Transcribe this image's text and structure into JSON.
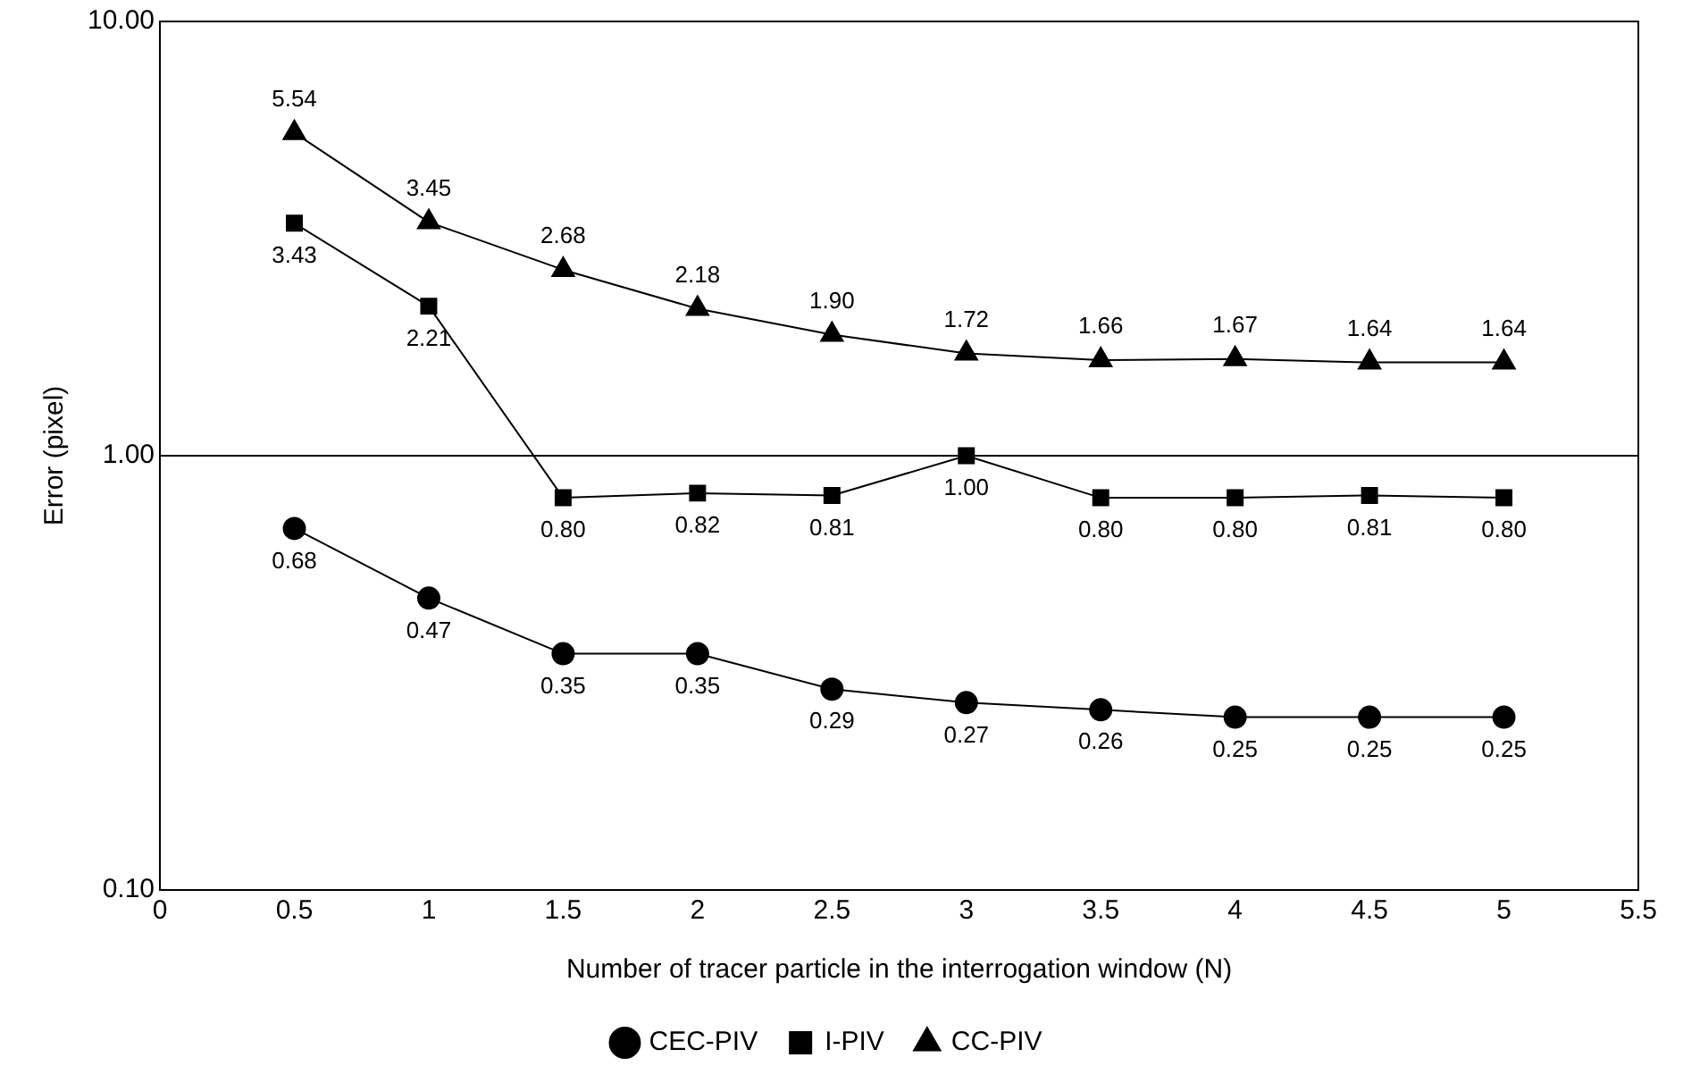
{
  "chart_data": {
    "type": "line",
    "xlabel": "Number of tracer particle in the interrogation window (N)",
    "ylabel": "Error (pixel)",
    "x": [
      0.5,
      1,
      1.5,
      2,
      2.5,
      3,
      3.5,
      4,
      4.5,
      5
    ],
    "series": [
      {
        "name": "CEC-PIV",
        "color": "#000000",
        "marker": "circle",
        "values": [
          0.68,
          0.47,
          0.35,
          0.35,
          0.29,
          0.27,
          0.26,
          0.25,
          0.25,
          0.25
        ],
        "value_labels": [
          "0.68",
          "0.47",
          "0.35",
          "0.35",
          "0.29",
          "0.27",
          "0.26",
          "0.25",
          "0.25",
          "0.25"
        ]
      },
      {
        "name": "I-PIV",
        "color": "#000000",
        "marker": "square",
        "values": [
          3.43,
          2.21,
          0.8,
          0.82,
          0.81,
          1.0,
          0.8,
          0.8,
          0.81,
          0.8
        ],
        "value_labels": [
          "3.43",
          "2.21",
          "0.80",
          "0.82",
          "0.81",
          "1.00",
          "0.80",
          "0.80",
          "0.81",
          "0.80"
        ]
      },
      {
        "name": "CC-PIV",
        "color": "#000000",
        "marker": "triangle",
        "values": [
          5.54,
          3.45,
          2.68,
          2.18,
          1.9,
          1.72,
          1.66,
          1.67,
          1.64,
          1.64
        ],
        "value_labels": [
          "5.54",
          "3.45",
          "2.68",
          "2.18",
          "1.90",
          "1.72",
          "1.66",
          "1.67",
          "1.64",
          "1.64"
        ]
      }
    ],
    "xlim": [
      0,
      5.5
    ],
    "xticks": [
      0,
      0.5,
      1,
      1.5,
      2,
      2.5,
      3,
      3.5,
      4,
      4.5,
      5,
      5.5
    ],
    "log": "y",
    "ylim": [
      0.1,
      10
    ],
    "yticks": [
      {
        "value": 0.1,
        "label": "0.10"
      },
      {
        "value": 1,
        "label": "1.00"
      },
      {
        "value": 10,
        "label": "10.00"
      }
    ],
    "grid": "y",
    "legend": "bottom",
    "line_style": "solid"
  }
}
